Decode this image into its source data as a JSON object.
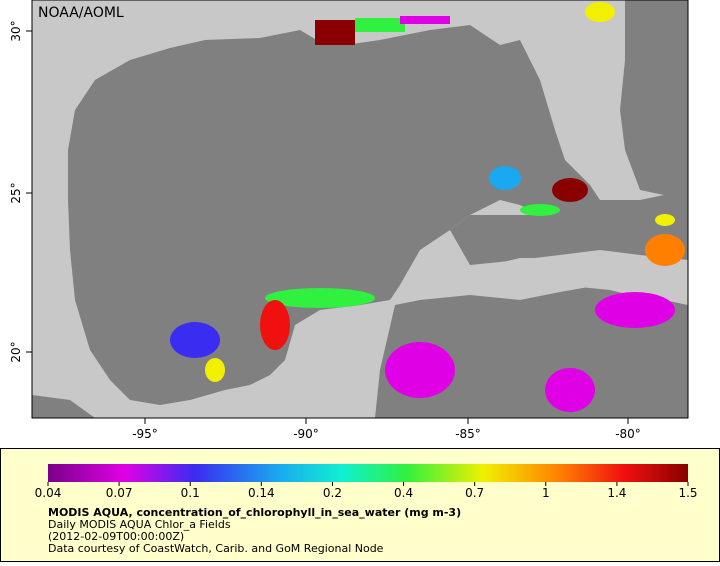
{
  "map": {
    "source": "NOAA/AOML",
    "lon_labels": [
      "-95°",
      "-90°",
      "-85°",
      "-80°"
    ],
    "lat_labels": [
      "20°",
      "25°",
      "30°"
    ]
  },
  "legend": {
    "tick_labels": [
      "0.04",
      "0.07",
      "0.1",
      "0.14",
      "0.2",
      "0.4",
      "0.7",
      "1",
      "1.4",
      "1.5"
    ],
    "title": "MODIS AQUA, concentration_of_chlorophyll_in_sea_water (mg m-3)",
    "lines": [
      "Daily MODIS AQUA Chlor_a Fields",
      "(2012-02-09T00:00:00Z)",
      "Data courtesy of CoastWatch, Carib. and GoM Regional Node"
    ]
  }
}
